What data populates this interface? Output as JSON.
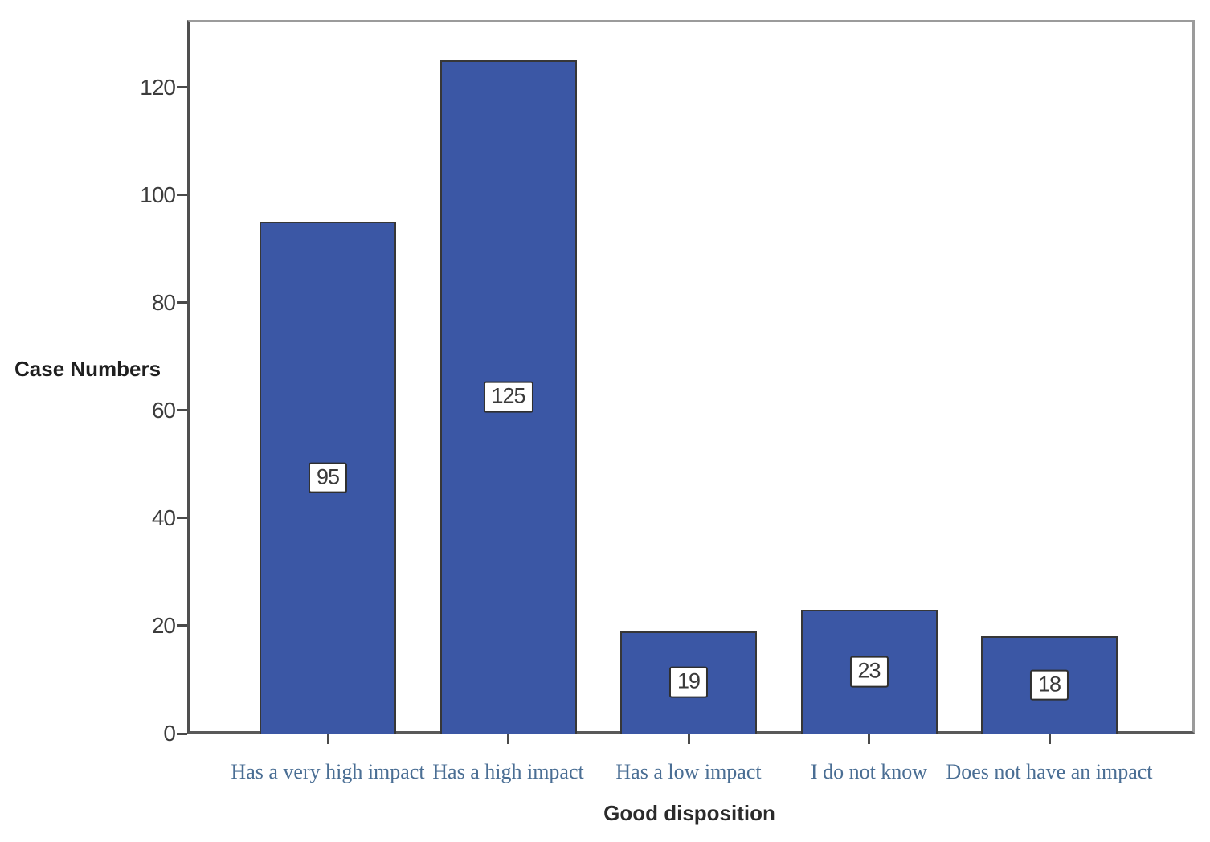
{
  "chart_data": {
    "type": "bar",
    "title": "",
    "categories": [
      "Has a very high impact",
      "Has a high impact",
      "Has a low impact",
      "I do not know",
      "Does not have an impact"
    ],
    "values": [
      95,
      125,
      19,
      23,
      18
    ],
    "bar_labels": [
      "95",
      "125",
      "19",
      "23",
      "18"
    ],
    "xlabel": "Good disposition",
    "ylabel": "Case Numbers",
    "yticks": [
      0,
      20,
      40,
      60,
      80,
      100,
      120
    ],
    "ytick_labels": [
      "0",
      "20",
      "40",
      "60",
      "80",
      "100",
      "120"
    ],
    "ylim": [
      0,
      132.5
    ],
    "grid": false,
    "legend_position": "none",
    "bar_color": "#3b57a5",
    "bar_border_color": "#373737",
    "value_label_bg": "#ffffff",
    "value_label_border": "#2f2f2f",
    "category_label_color": "#4a6e94",
    "axis_text_color": "#3c3c3c",
    "frame_color": "#9b9b9b"
  }
}
